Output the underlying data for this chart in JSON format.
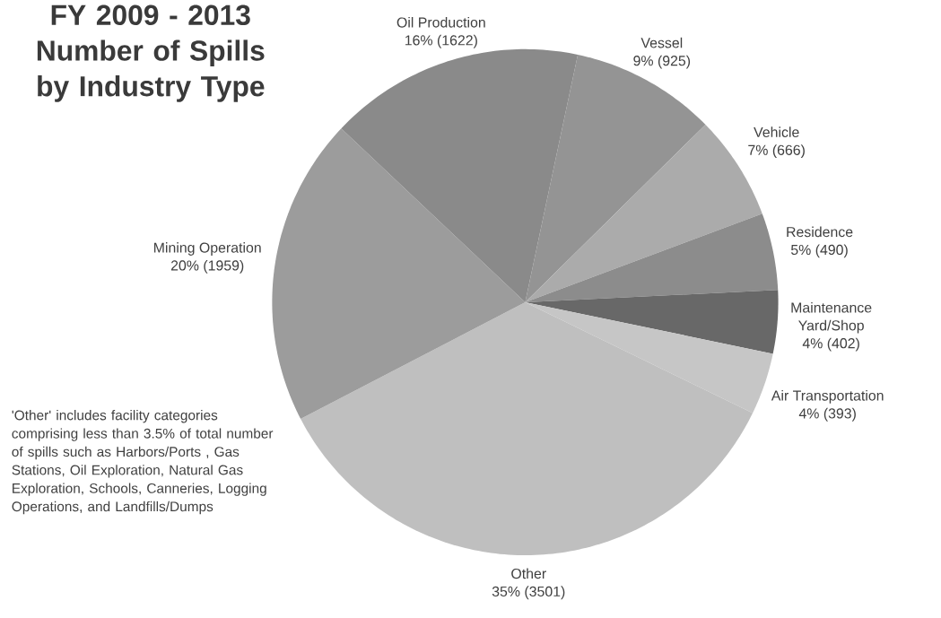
{
  "chart_data": {
    "type": "pie",
    "title": "FY 2009 - 2013 Number of Spills by Industry Type",
    "categories": [
      "Vessel",
      "Vehicle",
      "Residence",
      "Maintenance Yard/Shop",
      "Air Transportation",
      "Other",
      "Mining Operation",
      "Oil Production"
    ],
    "values": [
      925,
      666,
      490,
      402,
      393,
      3501,
      1959,
      1622
    ],
    "value_labels": [
      "9% (925)",
      "7% (666)",
      "5% (490)",
      "4% (402)",
      "4% (393)",
      "35% (3501)",
      "20% (1959)",
      "16% (1622)"
    ],
    "colors": [
      "#949494",
      "#ababab",
      "#8c8c8c",
      "#686868",
      "#c6c6c6",
      "#bfbfbf",
      "#9c9c9c",
      "#8a8a8a"
    ],
    "annotations": [
      "'Other' includes facility categories comprising less than 3.5% of total number of spills such as Harbors/Ports , Gas Stations, Oil Exploration, Natural Gas Exploration, Schools, Canneries, Logging Operations, and Landfills/Dumps"
    ]
  }
}
